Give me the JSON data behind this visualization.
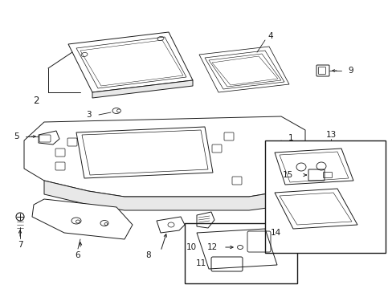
{
  "bg_color": "#ffffff",
  "line_color": "#1a1a1a",
  "fig_width": 4.89,
  "fig_height": 3.6,
  "dpi": 100,
  "label_fontsize": 7.5
}
